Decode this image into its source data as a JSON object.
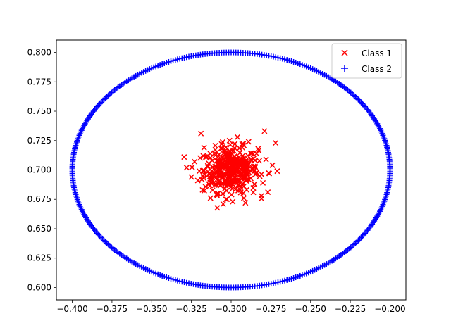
{
  "chart_data": {
    "type": "scatter",
    "title": "",
    "xlabel": "",
    "ylabel": "",
    "xlim": [
      -0.41,
      -0.19
    ],
    "ylim": [
      0.5895,
      0.8105
    ],
    "xticks": [
      -0.4,
      -0.375,
      -0.35,
      -0.325,
      -0.3,
      -0.275,
      -0.25,
      -0.225,
      -0.2
    ],
    "xtick_labels": [
      "−0.400",
      "−0.375",
      "−0.350",
      "−0.325",
      "−0.300",
      "−0.275",
      "−0.250",
      "−0.225",
      "−0.200"
    ],
    "yticks": [
      0.6,
      0.625,
      0.65,
      0.675,
      0.7,
      0.725,
      0.75,
      0.775,
      0.8
    ],
    "ytick_labels": [
      "0.600",
      "0.625",
      "0.650",
      "0.675",
      "0.700",
      "0.725",
      "0.750",
      "0.775",
      "0.800"
    ],
    "grid": false,
    "legend_position": "top-right",
    "series": [
      {
        "name": "Class 1",
        "marker": "x",
        "color": "#ff0000",
        "description": "Gaussian cluster centered near (-0.30, 0.70)",
        "center": [
          -0.3,
          0.7
        ],
        "points": [
          [
            -0.319,
            0.731
          ],
          [
            -0.279,
            0.733
          ],
          [
            -0.272,
            0.723
          ],
          [
            -0.328,
            0.702
          ],
          [
            -0.325,
            0.694
          ],
          [
            -0.271,
            0.699
          ],
          [
            -0.317,
            0.719
          ],
          [
            -0.31,
            0.717
          ],
          [
            -0.306,
            0.722
          ],
          [
            -0.296,
            0.728
          ],
          [
            -0.289,
            0.724
          ],
          [
            -0.283,
            0.718
          ],
          [
            -0.278,
            0.709
          ],
          [
            -0.276,
            0.697
          ],
          [
            -0.28,
            0.689
          ],
          [
            -0.286,
            0.681
          ],
          [
            -0.292,
            0.676
          ],
          [
            -0.299,
            0.673
          ],
          [
            -0.305,
            0.671
          ],
          [
            -0.313,
            0.676
          ],
          [
            -0.318,
            0.683
          ],
          [
            -0.321,
            0.691
          ],
          [
            -0.323,
            0.707
          ],
          [
            -0.316,
            0.711
          ],
          [
            -0.281,
            0.678
          ],
          [
            -0.291,
            0.672
          ],
          [
            -0.309,
            0.679
          ],
          [
            -0.314,
            0.688
          ],
          [
            -0.284,
            0.714
          ],
          [
            -0.301,
            0.725
          ],
          [
            -0.293,
            0.719
          ],
          [
            -0.32,
            0.699
          ],
          [
            -0.274,
            0.704
          ],
          [
            -0.308,
            0.705
          ],
          [
            -0.297,
            0.69
          ],
          [
            -0.302,
            0.713
          ],
          [
            -0.287,
            0.701
          ],
          [
            -0.311,
            0.696
          ],
          [
            -0.294,
            0.707
          ],
          [
            -0.304,
            0.684
          ]
        ]
      },
      {
        "name": "Class 2",
        "marker": "+",
        "color": "#0000ff",
        "description": "Points on an ellipse centered at (-0.30, 0.70) with x-radius 0.10 and y-radius 0.10",
        "center": [
          -0.3,
          0.7
        ],
        "radius_x": 0.1,
        "radius_y": 0.1,
        "count": 420
      }
    ]
  }
}
